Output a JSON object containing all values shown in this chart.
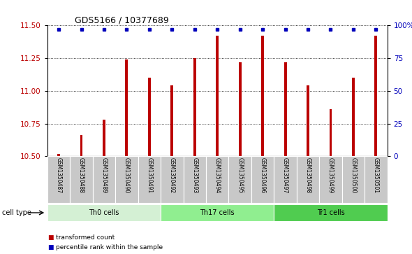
{
  "title": "GDS5166 / 10377689",
  "samples": [
    "GSM1350487",
    "GSM1350488",
    "GSM1350489",
    "GSM1350490",
    "GSM1350491",
    "GSM1350492",
    "GSM1350493",
    "GSM1350494",
    "GSM1350495",
    "GSM1350496",
    "GSM1350497",
    "GSM1350498",
    "GSM1350499",
    "GSM1350500",
    "GSM1350501"
  ],
  "transformed_count": [
    10.52,
    10.66,
    10.78,
    11.24,
    11.1,
    11.04,
    11.25,
    11.42,
    11.22,
    11.42,
    11.22,
    11.04,
    10.86,
    11.1,
    11.42
  ],
  "percentile_rank": [
    97,
    97,
    97,
    97,
    97,
    97,
    97,
    97,
    97,
    97,
    97,
    97,
    97,
    97,
    97
  ],
  "bar_color": "#bb0000",
  "dot_color": "#0000bb",
  "ylim_left": [
    10.5,
    11.5
  ],
  "ylim_right": [
    0,
    100
  ],
  "yticks_left": [
    10.5,
    10.75,
    11.0,
    11.25,
    11.5
  ],
  "yticks_right": [
    0,
    25,
    50,
    75,
    100
  ],
  "ytick_labels_right": [
    "0",
    "25",
    "50",
    "75",
    "100%"
  ],
  "groups": [
    {
      "label": "Th0 cells",
      "start": 0,
      "end": 5,
      "color": "#d4f0d4"
    },
    {
      "label": "Th17 cells",
      "start": 5,
      "end": 10,
      "color": "#90ee90"
    },
    {
      "label": "Tr1 cells",
      "start": 10,
      "end": 15,
      "color": "#50cc50"
    }
  ],
  "cell_type_label": "cell type",
  "legend_transformed": "transformed count",
  "legend_percentile": "percentile rank within the sample",
  "plot_bg": "#ffffff",
  "label_bg": "#c8c8c8"
}
